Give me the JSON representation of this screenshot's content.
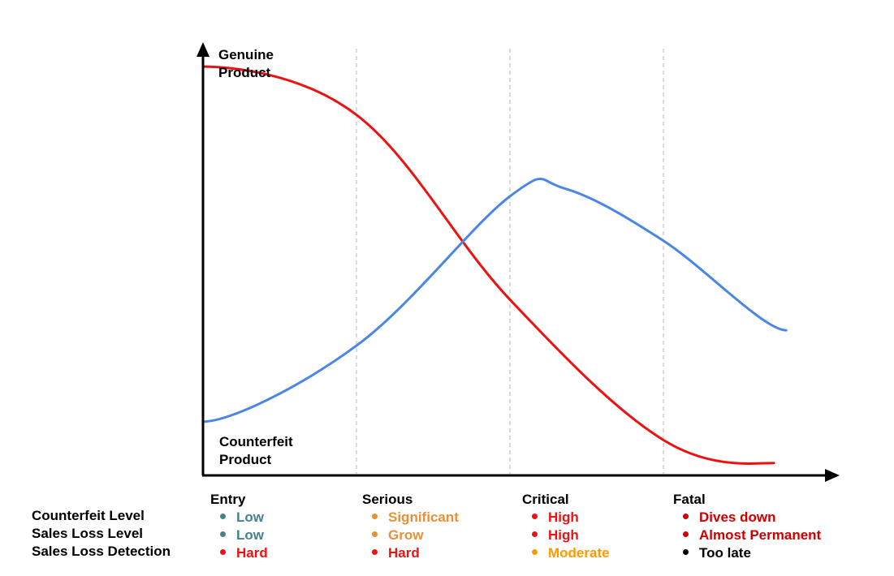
{
  "chart_data": {
    "type": "line",
    "x_domain": [
      0,
      100
    ],
    "y_domain": [
      0,
      100
    ],
    "axis_labels": {
      "genuine": [
        "Genuine",
        "Product"
      ],
      "counterfeit": [
        "Counterfeit",
        "Product"
      ]
    },
    "stage_boundaries": [
      25,
      50,
      75
    ],
    "series": [
      {
        "name": "Genuine Product",
        "color": "#ee1111",
        "points": [
          [
            0,
            95.8
          ],
          [
            25,
            84.5
          ],
          [
            50,
            41.2
          ],
          [
            75,
            8.3
          ],
          [
            93,
            2.9
          ]
        ]
      },
      {
        "name": "Counterfeit Product",
        "color": "#4a86e8",
        "points": [
          [
            0,
            12.6
          ],
          [
            25,
            30.4
          ],
          [
            50,
            65.4
          ],
          [
            59,
            67.2
          ],
          [
            75,
            55.0
          ],
          [
            95,
            34.0
          ]
        ]
      }
    ],
    "row_labels": [
      "Counterfeit Level",
      "Sales Loss Level",
      "Sales Loss Detection"
    ],
    "stages": [
      {
        "name": "Entry",
        "items": [
          {
            "text": "Low",
            "color": "#45818e"
          },
          {
            "text": "Low",
            "color": "#45818e"
          },
          {
            "text": "Hard",
            "color": "#ee1111"
          }
        ]
      },
      {
        "name": "Serious",
        "items": [
          {
            "text": "Significant",
            "color": "#e69138"
          },
          {
            "text": "Grow",
            "color": "#e69138"
          },
          {
            "text": "Hard",
            "color": "#ee1111"
          }
        ]
      },
      {
        "name": "Critical",
        "items": [
          {
            "text": "High",
            "color": "#ee1111"
          },
          {
            "text": "High",
            "color": "#ee1111"
          },
          {
            "text": "Moderate",
            "color": "#ff9900"
          }
        ]
      },
      {
        "name": "Fatal",
        "items": [
          {
            "text": "Dives down",
            "color": "#cc0000"
          },
          {
            "text": "Almost Permanent",
            "color": "#cc0000"
          },
          {
            "text": "Too late",
            "color": "#000000"
          }
        ]
      }
    ]
  }
}
